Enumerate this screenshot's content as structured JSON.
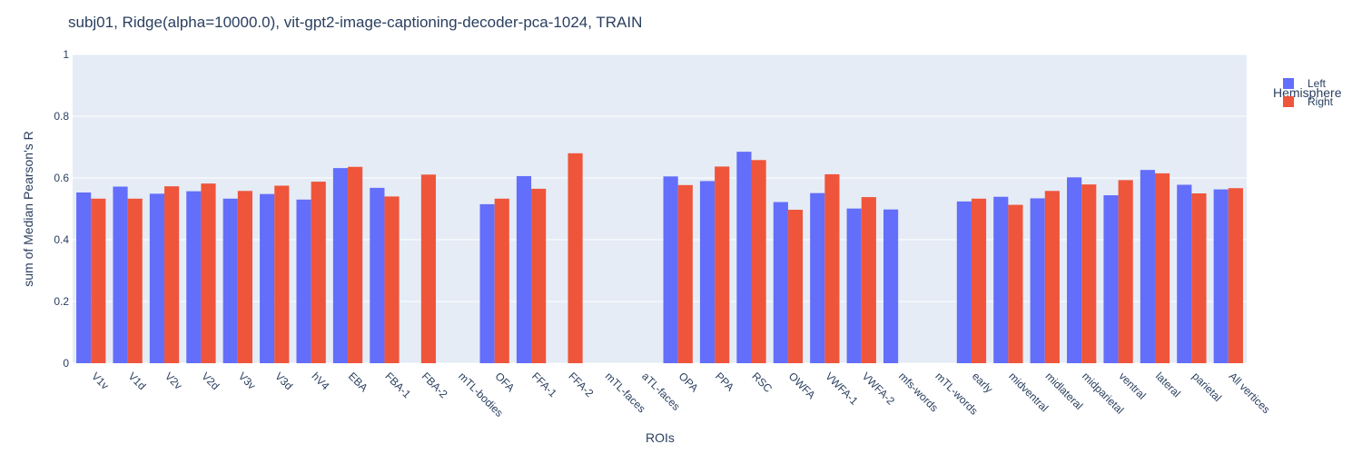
{
  "chart_data": {
    "type": "bar",
    "title": "subj01, Ridge(alpha=10000.0), vit-gpt2-image-captioning-decoder-pca-1024, TRAIN",
    "xlabel": "ROIs",
    "ylabel": "sum of Median Pearson's R",
    "ylim": [
      0,
      1
    ],
    "yticks": [
      0,
      0.2,
      0.4,
      0.6,
      0.8,
      1
    ],
    "ytick_labels": [
      "0",
      "0.2",
      "0.4",
      "0.6",
      "0.8",
      "1"
    ],
    "grid": true,
    "legend": {
      "title": "Hemisphere",
      "position": "top-right"
    },
    "categories": [
      "V1v",
      "V1d",
      "V2v",
      "V2d",
      "V3v",
      "V3d",
      "hV4",
      "EBA",
      "FBA-1",
      "FBA-2",
      "mTL-bodies",
      "OFA",
      "FFA-1",
      "FFA-2",
      "mTL-faces",
      "aTL-faces",
      "OPA",
      "PPA",
      "RSC",
      "OWFA",
      "VWFA-1",
      "VWFA-2",
      "mfs-words",
      "mTL-words",
      "early",
      "midventral",
      "midlateral",
      "midparietal",
      "ventral",
      "lateral",
      "parietal",
      "All vertices"
    ],
    "series": [
      {
        "name": "Left",
        "color": "#636efa",
        "values": [
          0.553,
          0.572,
          0.549,
          0.557,
          0.533,
          0.548,
          0.53,
          0.632,
          0.568,
          null,
          null,
          0.515,
          0.606,
          null,
          null,
          null,
          0.605,
          0.59,
          0.685,
          0.522,
          0.551,
          0.501,
          0.498,
          null,
          0.524,
          0.539,
          0.534,
          0.602,
          0.544,
          0.626,
          0.578,
          0.563
        ]
      },
      {
        "name": "Right",
        "color": "#ef553b",
        "values": [
          0.533,
          0.533,
          0.573,
          0.582,
          0.558,
          0.575,
          0.588,
          0.636,
          0.54,
          0.611,
          null,
          0.533,
          0.565,
          0.68,
          null,
          null,
          0.577,
          0.637,
          0.658,
          0.497,
          0.612,
          0.538,
          null,
          null,
          0.533,
          0.513,
          0.558,
          0.579,
          0.593,
          0.615,
          0.55,
          0.567
        ]
      }
    ]
  }
}
